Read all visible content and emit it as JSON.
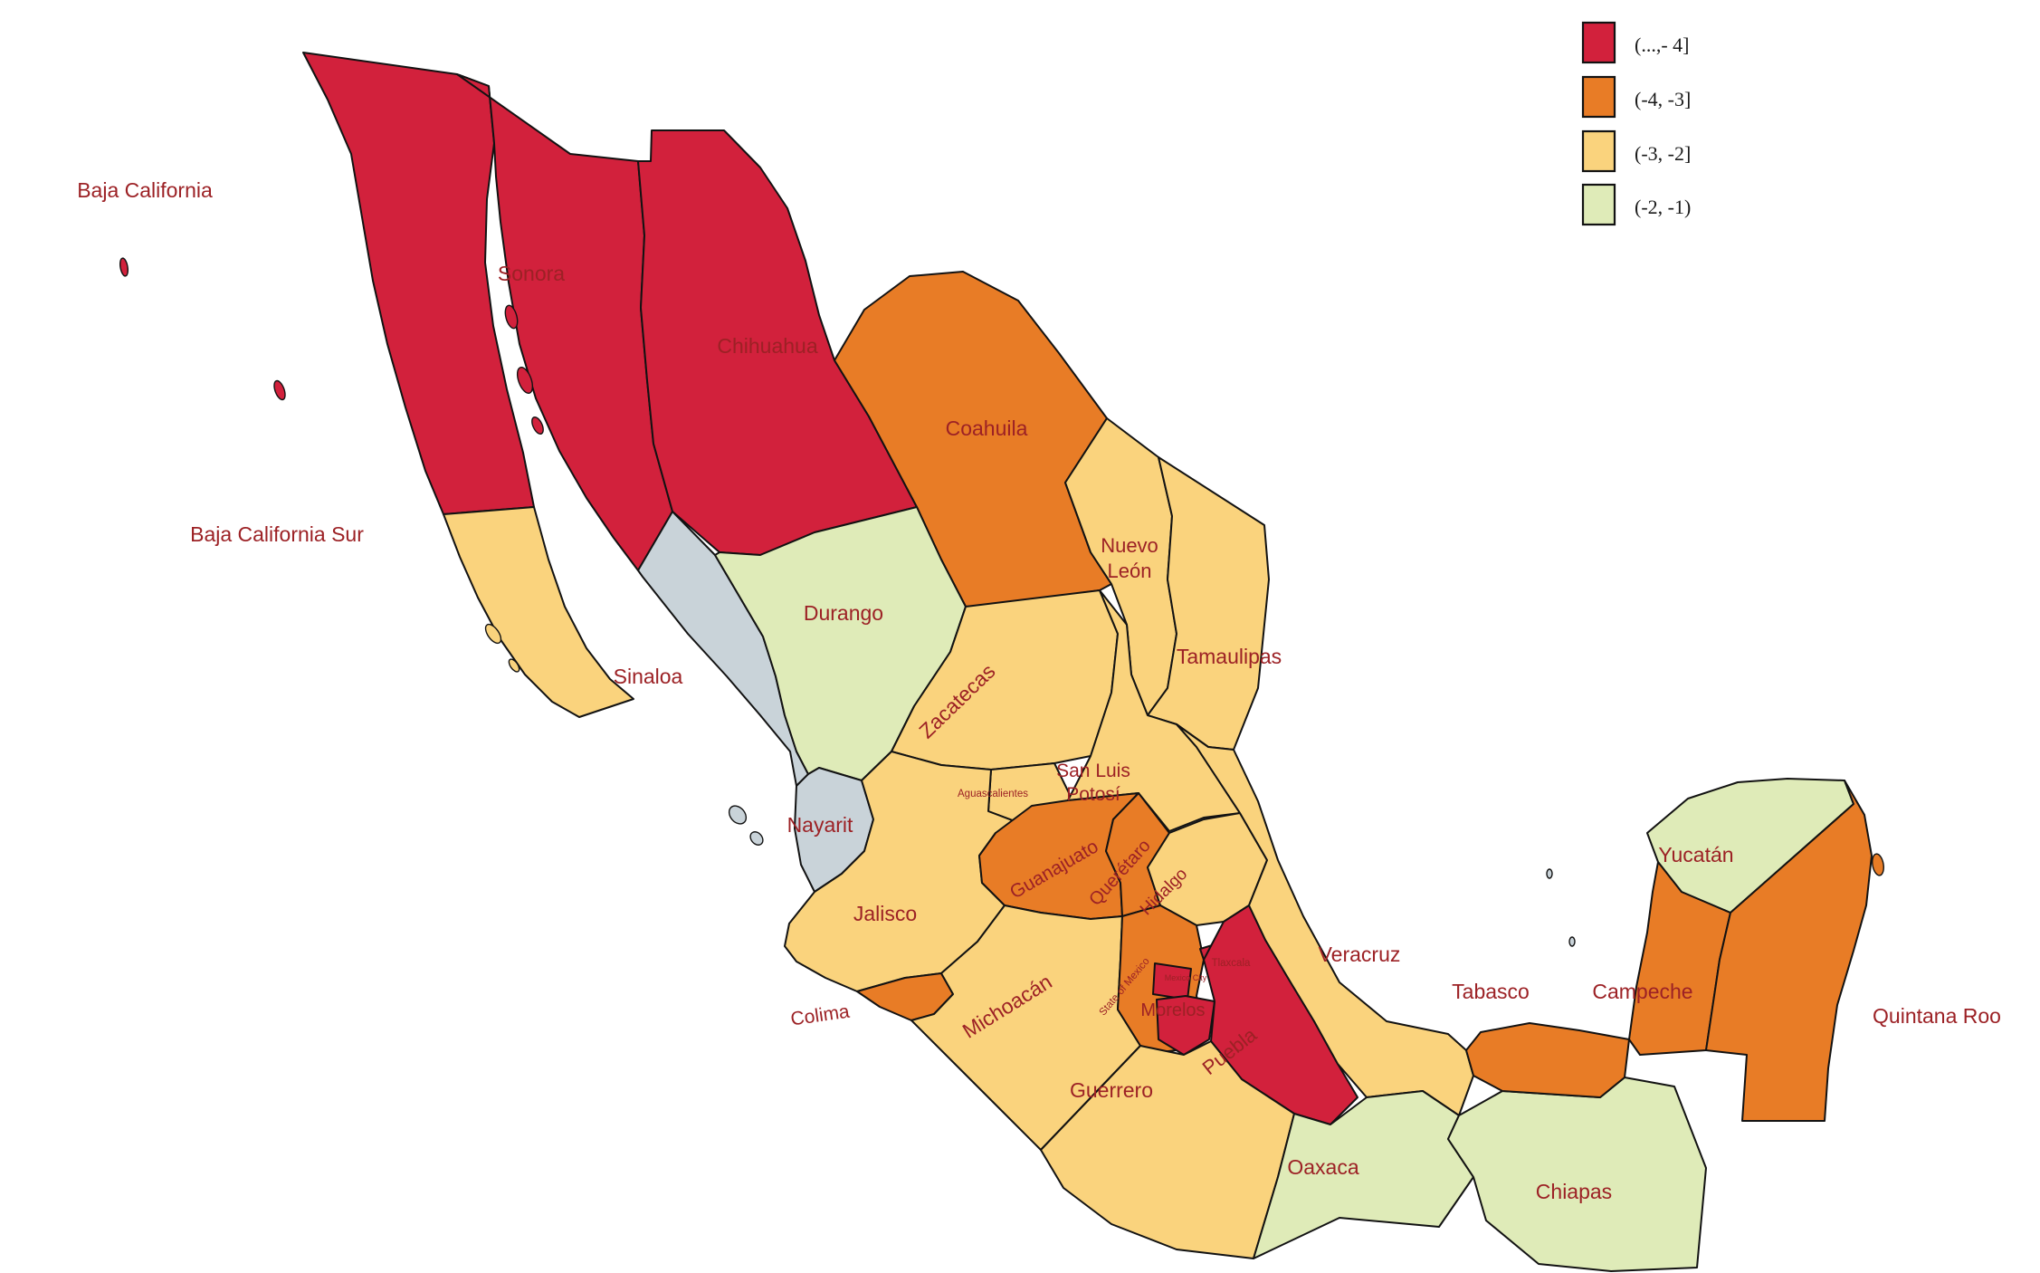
{
  "figure": {
    "type": "choropleth-map",
    "region": "Mexico",
    "description": "Mexican states shaded by value bins",
    "background": "#ffffff"
  },
  "colors": {
    "bin1": "#d2213c",
    "bin2": "#e87c26",
    "bin3": "#fad37d",
    "bin4": "#dfebb8",
    "no_data": "#c9d3d9",
    "border": "#121212",
    "label": "#9c2125",
    "background": "#ffffff"
  },
  "legend": {
    "position": "top-right",
    "items": [
      {
        "label": "(...,- 4]",
        "bin": "bin1"
      },
      {
        "label": "(-4, -3]",
        "bin": "bin2"
      },
      {
        "label": "(-3, -2]",
        "bin": "bin3"
      },
      {
        "label": "(-2, -1)",
        "bin": "bin4"
      }
    ]
  },
  "states": [
    {
      "id": "baja_california",
      "name": "Baja California",
      "label": "Baja California",
      "bin": "bin1"
    },
    {
      "id": "baja_california_sur",
      "name": "Baja California Sur",
      "label": "Baja California Sur",
      "bin": "bin3"
    },
    {
      "id": "sonora",
      "name": "Sonora",
      "label": "Sonora",
      "bin": "bin1"
    },
    {
      "id": "chihuahua",
      "name": "Chihuahua",
      "label": "Chihuahua",
      "bin": "bin1"
    },
    {
      "id": "coahuila",
      "name": "Coahuila",
      "label": "Coahuila",
      "bin": "bin2"
    },
    {
      "id": "nuevo_leon",
      "name": "Nuevo León",
      "label_lines": [
        "Nuevo",
        "León"
      ],
      "bin": "bin3"
    },
    {
      "id": "tamaulipas",
      "name": "Tamaulipas",
      "label": "Tamaulipas",
      "bin": "bin3"
    },
    {
      "id": "sinaloa",
      "name": "Sinaloa",
      "label": "Sinaloa",
      "bin": "no_data"
    },
    {
      "id": "durango",
      "name": "Durango",
      "label": "Durango",
      "bin": "bin4"
    },
    {
      "id": "zacatecas",
      "name": "Zacatecas",
      "label": "Zacatecas",
      "bin": "bin3"
    },
    {
      "id": "aguascalientes",
      "name": "Aguascalientes",
      "label": "Aguascalientes",
      "bin": "bin3"
    },
    {
      "id": "san_luis_potosi",
      "name": "San Luis Potosí",
      "label_lines": [
        "San Luis",
        "Potosí"
      ],
      "bin": "bin3"
    },
    {
      "id": "nayarit",
      "name": "Nayarit",
      "label": "Nayarit",
      "bin": "no_data"
    },
    {
      "id": "jalisco",
      "name": "Jalisco",
      "label": "Jalisco",
      "bin": "bin3"
    },
    {
      "id": "guanajuato",
      "name": "Guanajuato",
      "label": "Guanajuato",
      "bin": "bin2"
    },
    {
      "id": "queretaro",
      "name": "Querétaro",
      "label": "Querétaro",
      "bin": "bin2"
    },
    {
      "id": "hidalgo",
      "name": "Hidalgo",
      "label": "Hidalgo",
      "bin": "bin3"
    },
    {
      "id": "colima",
      "name": "Colima",
      "label": "Colima",
      "bin": "bin2"
    },
    {
      "id": "michoacan",
      "name": "Michoacán",
      "label": "Michoacán",
      "bin": "bin3"
    },
    {
      "id": "mexico_state",
      "name": "State of Mexico",
      "label": "State of Mexico",
      "bin": "bin2"
    },
    {
      "id": "mexico_city",
      "name": "Mexico City",
      "label": "Mexico City",
      "bin": "bin1"
    },
    {
      "id": "tlaxcala",
      "name": "Tlaxcala",
      "label": "Tlaxcala",
      "bin": "bin1"
    },
    {
      "id": "morelos",
      "name": "Morelos",
      "label": "Morelos",
      "bin": "bin1"
    },
    {
      "id": "puebla",
      "name": "Puebla",
      "label": "Puebla",
      "bin": "bin1"
    },
    {
      "id": "veracruz",
      "name": "Veracruz",
      "label": "Veracruz",
      "bin": "bin3"
    },
    {
      "id": "guerrero",
      "name": "Guerrero",
      "label": "Guerrero",
      "bin": "bin3"
    },
    {
      "id": "oaxaca",
      "name": "Oaxaca",
      "label": "Oaxaca",
      "bin": "bin4"
    },
    {
      "id": "chiapas",
      "name": "Chiapas",
      "label": "Chiapas",
      "bin": "bin4"
    },
    {
      "id": "tabasco",
      "name": "Tabasco",
      "label": "Tabasco",
      "bin": "bin2"
    },
    {
      "id": "campeche",
      "name": "Campeche",
      "label": "Campeche",
      "bin": "bin2"
    },
    {
      "id": "yucatan",
      "name": "Yucatán",
      "label": "Yucatán",
      "bin": "bin4"
    },
    {
      "id": "quintana_roo",
      "name": "Quintana Roo",
      "label": "Quintana Roo",
      "bin": "bin2"
    }
  ]
}
